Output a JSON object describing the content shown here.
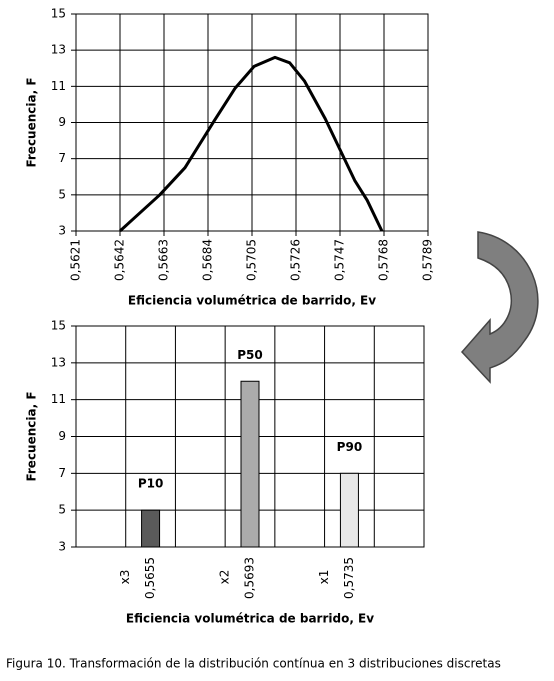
{
  "chart_data": [
    {
      "type": "line",
      "y_label": "Frecuencia, F",
      "x_label": "Eficiencia volumétrica de barrido, Ev",
      "x": [
        0.5642,
        0.5661,
        0.5673,
        0.5687,
        0.5697,
        0.5706,
        0.5716,
        0.5723,
        0.573,
        0.574,
        0.5747,
        0.5754,
        0.576,
        0.5767
      ],
      "values": [
        3,
        5,
        6.5,
        9.1,
        10.9,
        12.1,
        12.6,
        12.3,
        11.3,
        9.2,
        7.5,
        5.8,
        4.7,
        3
      ],
      "color": "#000000",
      "xlim": [
        0.5621,
        0.5789
      ],
      "xticks": [
        {
          "value": 0.5621,
          "label": "0,5621"
        },
        {
          "value": 0.5642,
          "label": "0,5642"
        },
        {
          "value": 0.5663,
          "label": "0,5663"
        },
        {
          "value": 0.5684,
          "label": "0,5684"
        },
        {
          "value": 0.5705,
          "label": "0,5705"
        },
        {
          "value": 0.5726,
          "label": "0,5726"
        },
        {
          "value": 0.5747,
          "label": "0,5747"
        },
        {
          "value": 0.5768,
          "label": "0,5768"
        },
        {
          "value": 0.5789,
          "label": "0,5789"
        }
      ],
      "ylim": [
        3,
        15
      ],
      "yticks": [
        3,
        5,
        7,
        9,
        11,
        13,
        15
      ],
      "grid": true
    },
    {
      "type": "bar",
      "y_label": "Frecuencia, F",
      "x_label": "Eficiencia volumétrica de barrido, Ev",
      "categories": [
        null,
        "0,5655",
        null,
        "0,5693",
        null,
        "0,5735",
        null
      ],
      "category_prefixes": [
        null,
        "x3",
        null,
        "x2",
        null,
        "x1",
        null
      ],
      "values": [
        null,
        5,
        null,
        12,
        null,
        7,
        null
      ],
      "bar_labels": [
        null,
        "P10",
        null,
        "P50",
        null,
        "P90",
        null
      ],
      "colors": [
        null,
        "#5a5a5a",
        null,
        "#ababab",
        null,
        "#e8e8e8",
        null
      ],
      "ylim": [
        3,
        15
      ],
      "yticks": [
        3,
        5,
        7,
        9,
        11,
        13,
        15
      ],
      "grid": true
    }
  ],
  "caption": "Figura 10. Transformación de la distribución contínua en 3 distribuciones discretas"
}
